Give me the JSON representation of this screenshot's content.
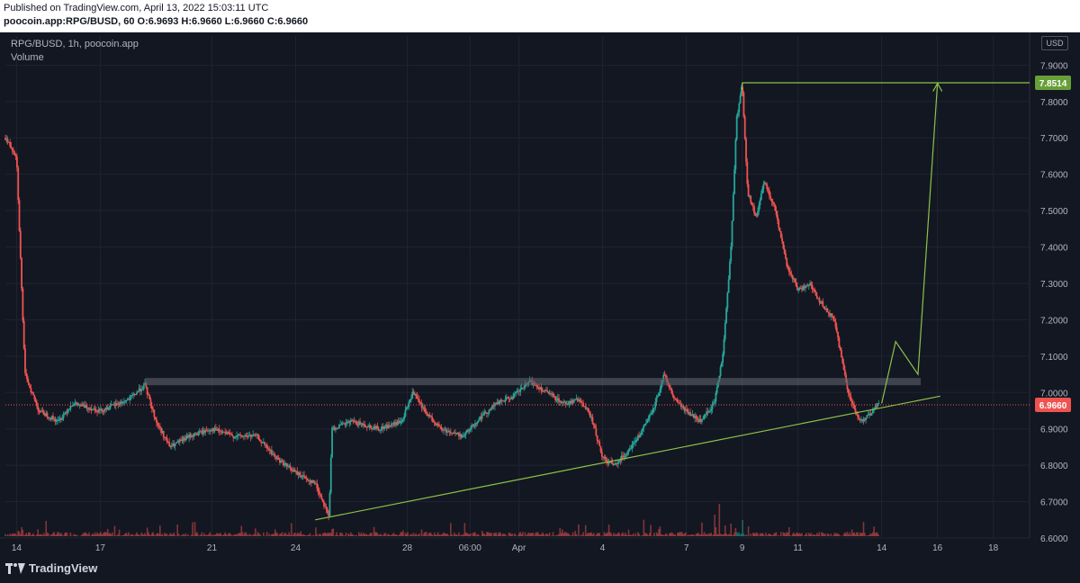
{
  "header": {
    "published": "Published on TradingView.com, April 13, 2022 15:03:11 UTC",
    "ohlc": "poocoin.app:RPG/BUSD, 60 O:6.9693 H:6.9660 L:6.9660 C:6.9660"
  },
  "legend": {
    "symbol": "RPG/BUSD, 1h, poocoin.app",
    "volume": "Volume"
  },
  "currency": "USD",
  "brand": "TradingView",
  "colors": {
    "up": "#26a69a",
    "down": "#ef5350",
    "line": "#8bc34a",
    "zone": "#5d606b"
  },
  "chart_data": {
    "type": "candlestick",
    "ylim": [
      6.6,
      7.98
    ],
    "y_ticks": [
      "7.9000",
      "7.8000",
      "7.7000",
      "7.6000",
      "7.5000",
      "7.4000",
      "7.3000",
      "7.2000",
      "7.1000",
      "7.0000",
      "6.9000",
      "6.8000",
      "6.7000",
      "6.6000"
    ],
    "x_ticks": [
      "14",
      "17",
      "21",
      "24",
      "28",
      "06:00",
      "Apr",
      "4",
      "7",
      "9",
      "11",
      "14",
      "16",
      "18"
    ],
    "x_tick_days": [
      14,
      17,
      21,
      24,
      28,
      30.25,
      32,
      35,
      38,
      40,
      42,
      45,
      47,
      49
    ],
    "x_range_days": [
      13.6,
      50.3
    ],
    "last_price": "6.9660",
    "last_price_value": 6.966,
    "target_price": "7.8514",
    "target_price_value": 7.8514,
    "price_path": [
      [
        13.6,
        7.7
      ],
      [
        14.0,
        7.65
      ],
      [
        14.3,
        7.05
      ],
      [
        14.8,
        6.95
      ],
      [
        15.5,
        6.92
      ],
      [
        16.0,
        6.97
      ],
      [
        17.0,
        6.95
      ],
      [
        18.0,
        6.98
      ],
      [
        18.6,
        7.02
      ],
      [
        19.0,
        6.92
      ],
      [
        19.5,
        6.85
      ],
      [
        20.2,
        6.88
      ],
      [
        21.0,
        6.9
      ],
      [
        21.8,
        6.88
      ],
      [
        22.6,
        6.88
      ],
      [
        23.3,
        6.82
      ],
      [
        24.0,
        6.78
      ],
      [
        24.7,
        6.75
      ],
      [
        25.2,
        6.66
      ],
      [
        25.3,
        6.9
      ],
      [
        26.0,
        6.92
      ],
      [
        27.0,
        6.9
      ],
      [
        27.8,
        6.92
      ],
      [
        28.2,
        7.0
      ],
      [
        28.6,
        6.95
      ],
      [
        29.2,
        6.9
      ],
      [
        30.0,
        6.88
      ],
      [
        30.6,
        6.93
      ],
      [
        31.2,
        6.97
      ],
      [
        31.8,
        6.99
      ],
      [
        32.4,
        7.03
      ],
      [
        33.0,
        7.0
      ],
      [
        33.6,
        6.97
      ],
      [
        34.2,
        6.98
      ],
      [
        34.6,
        6.93
      ],
      [
        35.0,
        6.82
      ],
      [
        35.4,
        6.8
      ],
      [
        35.8,
        6.83
      ],
      [
        36.3,
        6.88
      ],
      [
        36.8,
        6.95
      ],
      [
        37.2,
        7.05
      ],
      [
        37.6,
        6.98
      ],
      [
        38.0,
        6.95
      ],
      [
        38.5,
        6.92
      ],
      [
        39.0,
        6.97
      ],
      [
        39.3,
        7.1
      ],
      [
        39.6,
        7.4
      ],
      [
        39.8,
        7.75
      ],
      [
        40.0,
        7.85
      ],
      [
        40.2,
        7.55
      ],
      [
        40.5,
        7.48
      ],
      [
        40.8,
        7.58
      ],
      [
        41.2,
        7.5
      ],
      [
        41.6,
        7.35
      ],
      [
        42.0,
        7.28
      ],
      [
        42.4,
        7.3
      ],
      [
        42.8,
        7.25
      ],
      [
        43.3,
        7.2
      ],
      [
        43.8,
        7.0
      ],
      [
        44.2,
        6.92
      ],
      [
        44.6,
        6.94
      ],
      [
        44.9,
        6.97
      ]
    ],
    "volume_spikes": [
      [
        39.0,
        0.6
      ],
      [
        39.2,
        0.9
      ],
      [
        39.6,
        0.35
      ],
      [
        40.0,
        0.45
      ],
      [
        25.3,
        0.2
      ],
      [
        34.0,
        0.15
      ],
      [
        37.0,
        0.2
      ],
      [
        14.2,
        0.25
      ]
    ],
    "drawings": {
      "resistance_zone": {
        "x_days": [
          18.6,
          46.4
        ],
        "y": [
          7.02,
          7.04
        ]
      },
      "support_trendline": {
        "from": [
          24.7,
          6.65
        ],
        "to": [
          47.1,
          6.99
        ]
      },
      "target_line": {
        "x_days": [
          40.0,
          50.3
        ],
        "y": 7.8514
      },
      "projection": [
        [
          45.0,
          6.97
        ],
        [
          45.5,
          7.14
        ],
        [
          46.3,
          7.05
        ],
        [
          47.0,
          7.85
        ]
      ]
    }
  }
}
